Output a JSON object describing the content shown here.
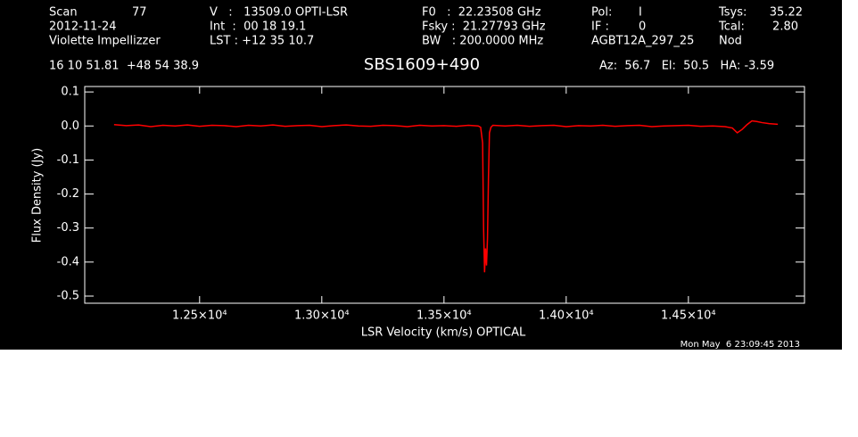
{
  "header": [
    "Scan",
    "77",
    "2012-11-24",
    "Violette Impellizzer",
    "V   :   13509.0 OPTI-LSR",
    "Int  :  00 18 19.1",
    "LST : +12 35 10.7",
    "F0   :  22.23508 GHz",
    "Fsky :  21.27793 GHz",
    "BW   : 200.0000 MHz",
    "Pol:",
    "I",
    "IF :",
    "0",
    "AGBT12A_297_25",
    "Tsys:",
    "35.22",
    "Tcal:",
    "2.80",
    "Nod",
    "16 10 51.81  +48 54 38.9",
    "Az:  56.7   El:  50.5   HA: -3.59",
    "Mon May  6 23:09:45 2013"
  ],
  "chart_data": {
    "type": "line",
    "title": "SBS1609+490",
    "x_label": "LSR Velocity (km/s) OPTICAL",
    "y_label": "Flux Density (Jy)",
    "xlim": [
      12030,
      14975
    ],
    "ylim": [
      -0.521,
      0.116
    ],
    "xticks": [
      {
        "value": 12500,
        "label": "1.25×10⁴"
      },
      {
        "value": 13000,
        "label": "1.30×10⁴"
      },
      {
        "value": 13500,
        "label": "1.35×10⁴"
      },
      {
        "value": 14000,
        "label": "1.40×10⁴"
      },
      {
        "value": 14500,
        "label": "1.45×10⁴"
      }
    ],
    "yticks": [
      0.1,
      {
        "value": 0,
        "label": "0.0"
      },
      -0.1,
      -0.2,
      -0.3,
      -0.4,
      -0.5
    ],
    "series": [
      {
        "color": "#ff0000",
        "x": [
          12150,
          12200,
          12250,
          12300,
          12350,
          12400,
          12450,
          12500,
          12550,
          12600,
          12650,
          12700,
          12750,
          12800,
          12850,
          12900,
          12950,
          13000,
          13050,
          13100,
          13150,
          13200,
          13250,
          13300,
          13350,
          13400,
          13450,
          13500,
          13550,
          13600,
          13640,
          13650,
          13658,
          13662,
          13666,
          13670,
          13674,
          13678,
          13682,
          13686,
          13692,
          13700,
          13750,
          13800,
          13850,
          13900,
          13950,
          14000,
          14050,
          14100,
          14150,
          14200,
          14250,
          14300,
          14350,
          14400,
          14450,
          14500,
          14550,
          14600,
          14650,
          14680,
          14700,
          14720,
          14740,
          14760,
          14780,
          14800,
          14830,
          14866
        ],
        "values": [
          0.004,
          0.001,
          0.003,
          -0.002,
          0.002,
          0.0,
          0.003,
          -0.001,
          0.002,
          0.001,
          -0.002,
          0.002,
          0.0,
          0.003,
          -0.001,
          0.001,
          0.002,
          -0.002,
          0.001,
          0.003,
          0.0,
          -0.001,
          0.002,
          0.001,
          -0.002,
          0.002,
          0.0,
          0.001,
          -0.001,
          0.002,
          0.0,
          -0.004,
          -0.05,
          -0.3,
          -0.43,
          -0.36,
          -0.41,
          -0.33,
          -0.15,
          -0.02,
          -0.004,
          0.002,
          0.0,
          0.002,
          -0.001,
          0.001,
          0.002,
          -0.002,
          0.001,
          0.0,
          0.002,
          -0.001,
          0.001,
          0.002,
          -0.002,
          0.0,
          0.001,
          0.002,
          -0.001,
          0.0,
          -0.002,
          -0.006,
          -0.02,
          -0.01,
          0.004,
          0.015,
          0.013,
          0.01,
          0.007,
          0.005
        ]
      }
    ]
  }
}
